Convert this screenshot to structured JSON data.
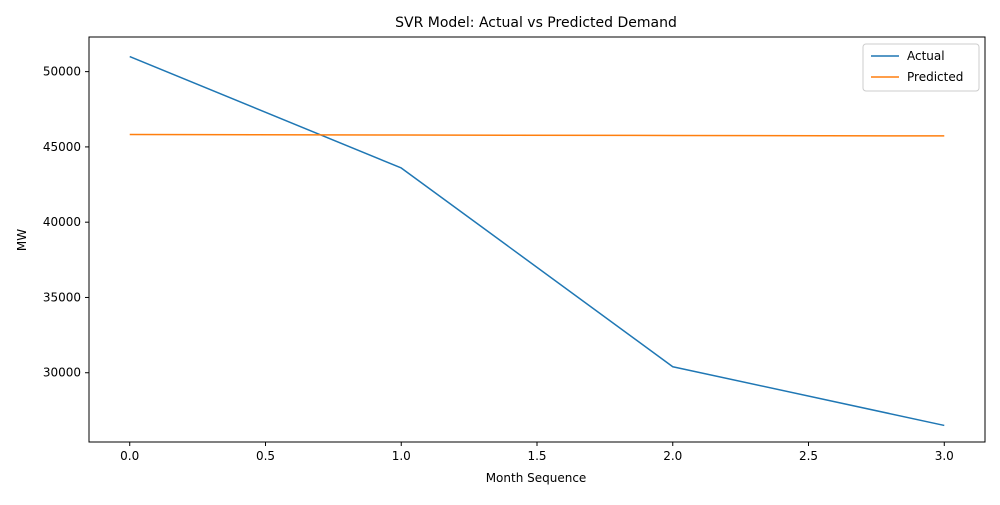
{
  "chart_data": {
    "type": "line",
    "title": "SVR Model: Actual vs Predicted Demand",
    "xlabel": "Month Sequence",
    "ylabel": "MW",
    "x": [
      0,
      1,
      2,
      3
    ],
    "xlim": [
      -0.15,
      3.15
    ],
    "ylim": [
      25400,
      52300
    ],
    "xticks": [
      0.0,
      0.5,
      1.0,
      1.5,
      2.0,
      2.5,
      3.0
    ],
    "xtick_labels": [
      "0.0",
      "0.5",
      "1.0",
      "1.5",
      "2.0",
      "2.5",
      "3.0"
    ],
    "yticks": [
      30000,
      35000,
      40000,
      45000,
      50000
    ],
    "ytick_labels": [
      "30000",
      "35000",
      "40000",
      "45000",
      "50000"
    ],
    "grid": false,
    "legend_position": "top-right",
    "series": [
      {
        "name": "Actual",
        "color": "#1f77b4",
        "values": [
          51000,
          43600,
          30400,
          26500
        ]
      },
      {
        "name": "Predicted",
        "color": "#ff7f0e",
        "values": [
          45820,
          45790,
          45760,
          45730
        ]
      }
    ]
  }
}
